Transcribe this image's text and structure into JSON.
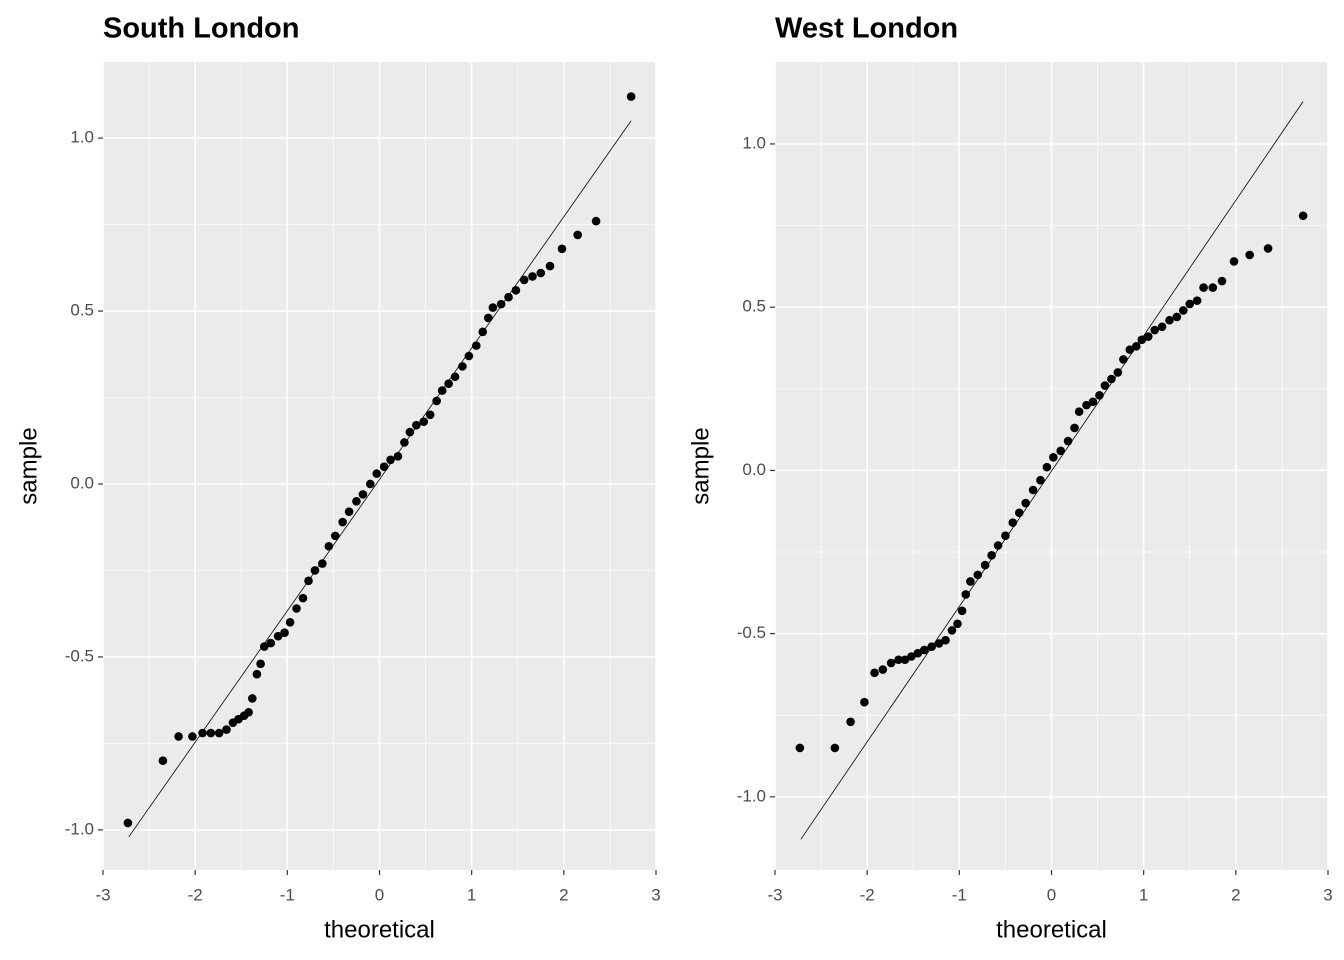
{
  "chart_data": [
    {
      "type": "scatter",
      "title": "South London",
      "xlabel": "theoretical",
      "ylabel": "sample",
      "color": "#000000",
      "grid": true,
      "xlim": [
        -3,
        3
      ],
      "ylim": [
        -1.116,
        1.22
      ],
      "xticks": [
        -3,
        -2,
        -1,
        0,
        1,
        2,
        3
      ],
      "yticks": [
        {
          "value": -1,
          "label": "-1.0"
        },
        {
          "value": -0.5,
          "label": "-0.5"
        },
        {
          "value": 0,
          "label": "0.0"
        },
        {
          "value": 0.5,
          "label": "0.5"
        },
        {
          "value": 1,
          "label": "1.0"
        }
      ],
      "x": [
        -2.73,
        -2.35,
        -2.18,
        -2.03,
        -1.92,
        -1.83,
        -1.74,
        -1.66,
        -1.59,
        -1.53,
        -1.47,
        -1.42,
        -1.38,
        -1.33,
        -1.29,
        -1.25,
        -1.18,
        -1.1,
        -1.03,
        -0.97,
        -0.9,
        -0.83,
        -0.77,
        -0.7,
        -0.62,
        -0.55,
        -0.48,
        -0.4,
        -0.33,
        -0.25,
        -0.18,
        -0.1,
        -0.03,
        0.05,
        0.12,
        0.2,
        0.27,
        0.33,
        0.4,
        0.48,
        0.55,
        0.62,
        0.68,
        0.75,
        0.82,
        0.9,
        0.97,
        1.05,
        1.12,
        1.18,
        1.23,
        1.32,
        1.4,
        1.48,
        1.57,
        1.66,
        1.75,
        1.85,
        1.98,
        2.15,
        2.35,
        2.73
      ],
      "values": [
        -0.98,
        -0.8,
        -0.73,
        -0.73,
        -0.72,
        -0.72,
        -0.72,
        -0.71,
        -0.69,
        -0.68,
        -0.67,
        -0.66,
        -0.62,
        -0.55,
        -0.52,
        -0.47,
        -0.46,
        -0.44,
        -0.43,
        -0.4,
        -0.36,
        -0.33,
        -0.28,
        -0.25,
        -0.23,
        -0.18,
        -0.15,
        -0.11,
        -0.08,
        -0.05,
        -0.03,
        0.0,
        0.03,
        0.05,
        0.07,
        0.08,
        0.12,
        0.15,
        0.17,
        0.18,
        0.2,
        0.24,
        0.27,
        0.29,
        0.31,
        0.34,
        0.37,
        0.4,
        0.44,
        0.48,
        0.51,
        0.52,
        0.54,
        0.56,
        0.59,
        0.6,
        0.61,
        0.63,
        0.68,
        0.72,
        0.76,
        1.12
      ],
      "line": {
        "x": [
          -2.72,
          2.73
        ],
        "y": [
          -1.02,
          1.05
        ]
      }
    },
    {
      "type": "scatter",
      "title": "West London",
      "xlabel": "theoretical",
      "ylabel": "sample",
      "color": "#000000",
      "grid": true,
      "xlim": [
        -3,
        3
      ],
      "ylim": [
        -1.224,
        1.251
      ],
      "xticks": [
        -3,
        -2,
        -1,
        0,
        1,
        2,
        3
      ],
      "yticks": [
        {
          "value": -1,
          "label": "-1.0"
        },
        {
          "value": -0.5,
          "label": "-0.5"
        },
        {
          "value": 0,
          "label": "0.0"
        },
        {
          "value": 0.5,
          "label": "0.5"
        },
        {
          "value": 1,
          "label": "1.0"
        }
      ],
      "x": [
        -2.73,
        -2.35,
        -2.18,
        -2.03,
        -1.92,
        -1.83,
        -1.74,
        -1.66,
        -1.59,
        -1.52,
        -1.45,
        -1.38,
        -1.3,
        -1.22,
        -1.15,
        -1.08,
        -1.02,
        -0.97,
        -0.93,
        -0.88,
        -0.8,
        -0.72,
        -0.65,
        -0.58,
        -0.5,
        -0.42,
        -0.35,
        -0.28,
        -0.2,
        -0.12,
        -0.05,
        0.02,
        0.1,
        0.18,
        0.25,
        0.3,
        0.38,
        0.45,
        0.52,
        0.58,
        0.65,
        0.72,
        0.78,
        0.85,
        0.92,
        0.98,
        1.05,
        1.12,
        1.2,
        1.28,
        1.36,
        1.43,
        1.5,
        1.58,
        1.65,
        1.75,
        1.85,
        1.98,
        2.15,
        2.35,
        2.73
      ],
      "values": [
        -0.85,
        -0.85,
        -0.77,
        -0.71,
        -0.62,
        -0.61,
        -0.59,
        -0.58,
        -0.58,
        -0.57,
        -0.56,
        -0.55,
        -0.54,
        -0.53,
        -0.52,
        -0.49,
        -0.47,
        -0.43,
        -0.38,
        -0.34,
        -0.32,
        -0.29,
        -0.26,
        -0.23,
        -0.2,
        -0.16,
        -0.13,
        -0.1,
        -0.06,
        -0.03,
        0.01,
        0.04,
        0.06,
        0.09,
        0.13,
        0.18,
        0.2,
        0.21,
        0.23,
        0.26,
        0.28,
        0.3,
        0.34,
        0.37,
        0.38,
        0.4,
        0.41,
        0.43,
        0.44,
        0.46,
        0.47,
        0.49,
        0.51,
        0.52,
        0.56,
        0.56,
        0.58,
        0.64,
        0.66,
        0.68,
        0.78
      ],
      "line": {
        "x": [
          -2.72,
          2.73
        ],
        "y": [
          -1.13,
          1.13
        ]
      }
    }
  ]
}
